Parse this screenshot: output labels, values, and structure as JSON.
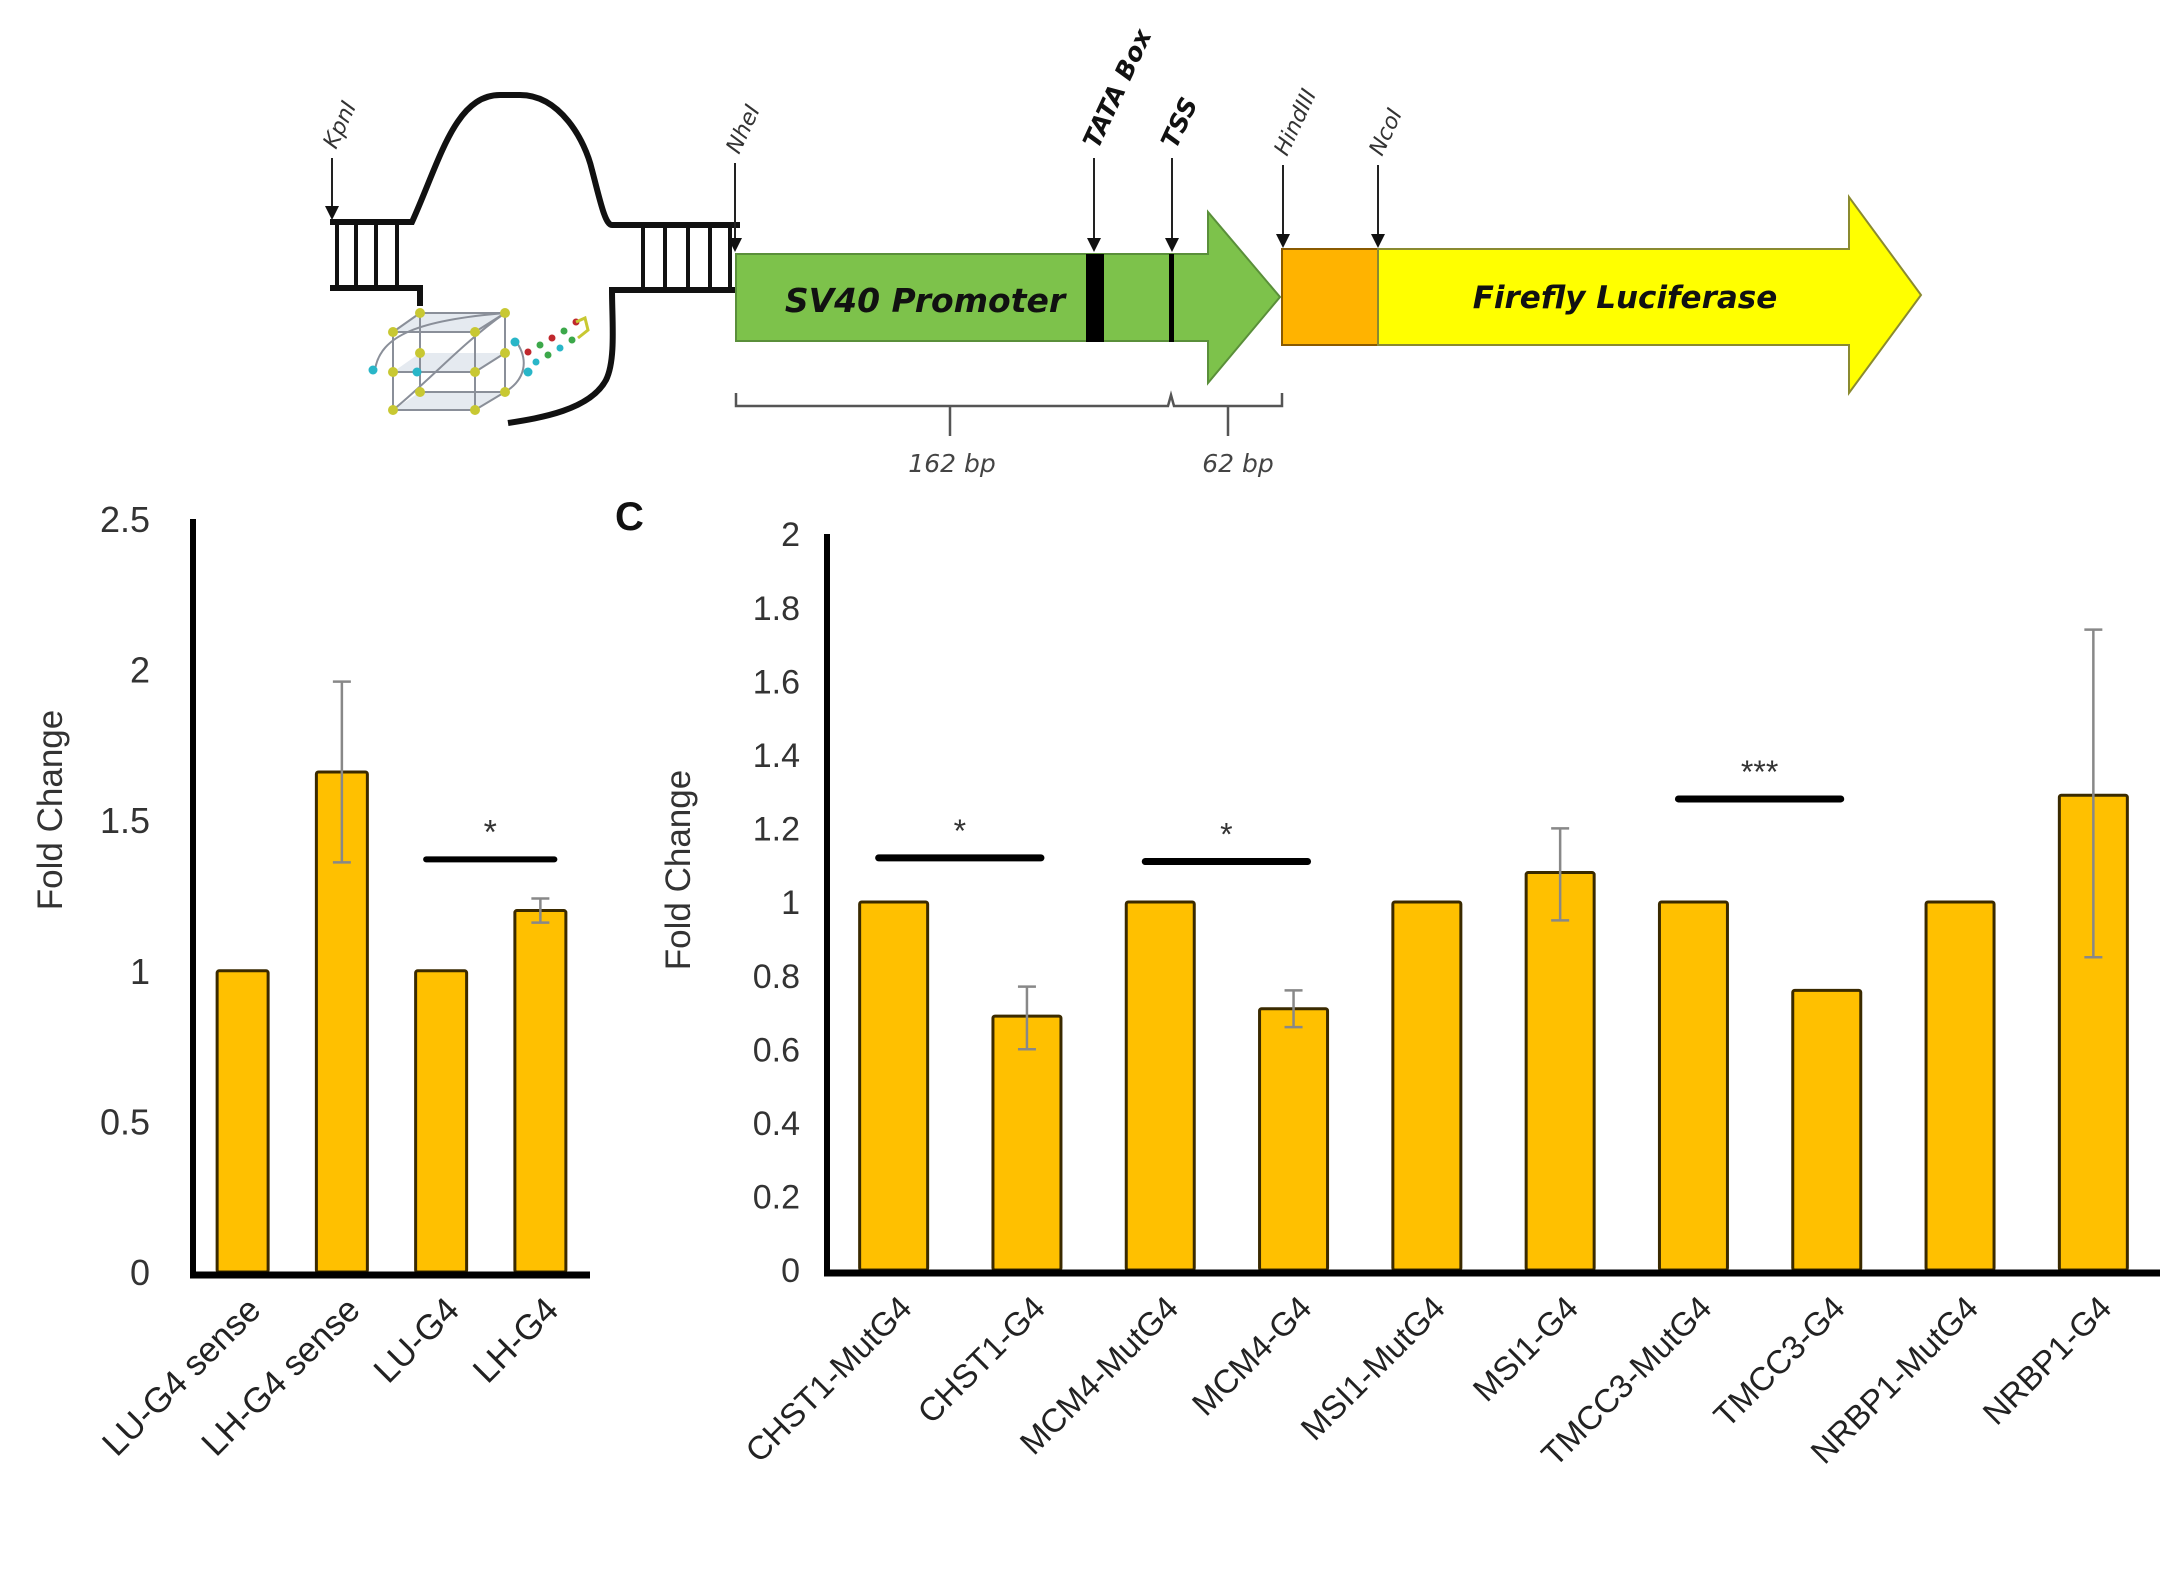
{
  "colors": {
    "bar_fill": "#FFC000",
    "bar_stroke": "#3a2a00",
    "error_bar": "#888888",
    "promoter_green": "#7DC24B",
    "promoter_stroke": "#5a8f3a",
    "luciferase_yellow": "#FFFF00",
    "luciferase_stroke": "#8a8a30",
    "spacer_orange": "#FFB300",
    "spacer_stroke": "#8a5a00",
    "g4_node": "#C8C832",
    "g4_cyan": "#29B6C8",
    "g4_red": "#C0282D",
    "g4_green": "#3CA84A"
  },
  "diagram": {
    "sites": [
      {
        "id": "kpni",
        "label": "KpnI",
        "bold": false
      },
      {
        "id": "nhei",
        "label": "NheI",
        "bold": false
      },
      {
        "id": "tata",
        "label": "TATA Box",
        "bold": true
      },
      {
        "id": "tss",
        "label": "TSS",
        "bold": true
      },
      {
        "id": "hindiii",
        "label": "HindIII",
        "bold": false
      },
      {
        "id": "ncoi",
        "label": "NcoI",
        "bold": false
      }
    ],
    "promoter_label": "SV40 Promoter",
    "reporter_label": "Firefly Luciferase",
    "segments": [
      {
        "label": "162 bp"
      },
      {
        "label": "62 bp"
      }
    ],
    "insert_icon": "g-quadruplex-hairpin-icon"
  },
  "chart_data": [
    {
      "id": "panel-b",
      "type": "bar",
      "panel_letter": "",
      "title": "",
      "xlabel": "",
      "ylabel": "Fold Change",
      "ylim": [
        0,
        2.5
      ],
      "yticks": [
        0,
        0.5,
        1,
        1.5,
        2,
        2.5
      ],
      "ytick_labels": [
        "0",
        "0.5",
        "1",
        "1.5",
        "2",
        "2.5"
      ],
      "grid": false,
      "legend": "none",
      "categories": [
        "LU-G4 sense",
        "LH-G4 sense",
        "LU-G4",
        "LH-G4"
      ],
      "values": [
        1.0,
        1.66,
        1.0,
        1.2
      ],
      "error": [
        null,
        [
          1.36,
          1.96
        ],
        null,
        [
          1.16,
          1.24
        ]
      ],
      "significance": [
        {
          "from": 2,
          "to": 3,
          "label": "*",
          "y": 1.37
        }
      ]
    },
    {
      "id": "panel-c",
      "type": "bar",
      "panel_letter": "C",
      "title": "",
      "xlabel": "",
      "ylabel": "Fold Change",
      "ylim": [
        0,
        2
      ],
      "yticks": [
        0,
        0.2,
        0.4,
        0.6,
        0.8,
        1,
        1.2,
        1.4,
        1.6,
        1.8,
        2
      ],
      "ytick_labels": [
        "0",
        "0.2",
        "0.4",
        "0.6",
        "0.8",
        "1",
        "1.2",
        "1.4",
        "1.6",
        "1.8",
        "2"
      ],
      "grid": false,
      "legend": "none",
      "categories": [
        "CHST1-MutG4",
        "CHST1-G4",
        "MCM4-MutG4",
        "MCM4-G4",
        "MSI1-MutG4",
        "MSI1-G4",
        "TMCC3-MutG4",
        "TMCC3-G4",
        "NRBP1-MutG4",
        "NRBP1-G4"
      ],
      "values": [
        1.0,
        0.69,
        1.0,
        0.71,
        1.0,
        1.08,
        1.0,
        0.76,
        1.0,
        1.29
      ],
      "error": [
        null,
        [
          0.6,
          0.77
        ],
        null,
        [
          0.66,
          0.76
        ],
        null,
        [
          0.95,
          1.2
        ],
        null,
        null,
        null,
        [
          0.85,
          1.74
        ]
      ],
      "significance": [
        {
          "from": 0,
          "to": 1,
          "label": "*",
          "y": 1.12
        },
        {
          "from": 2,
          "to": 3,
          "label": "*",
          "y": 1.11
        },
        {
          "from": 6,
          "to": 7,
          "label": "***",
          "y": 1.28
        }
      ]
    }
  ]
}
